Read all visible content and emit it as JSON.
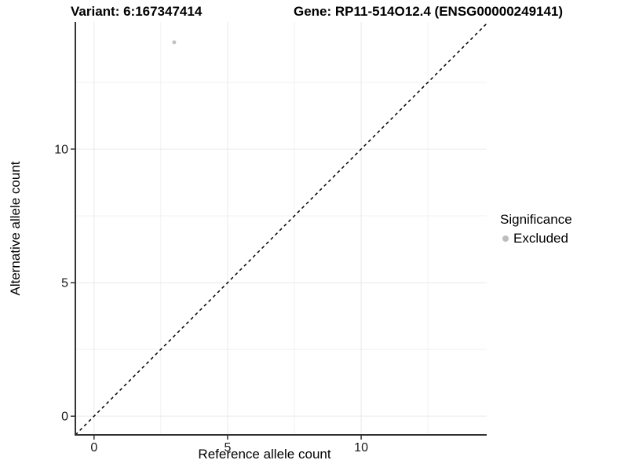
{
  "header": {
    "variant_title": "Variant: 6:167347414",
    "gene_title": "Gene: RP11-514O12.4 (ENSG00000249141)"
  },
  "chart_data": {
    "type": "scatter",
    "title_left": "Variant: 6:167347414",
    "title_right": "Gene: RP11-514O12.4 (ENSG00000249141)",
    "xlabel": "Reference allele count",
    "ylabel": "Alternative allele count",
    "xlim": [
      -0.7,
      14.7
    ],
    "ylim": [
      -0.7,
      14.76
    ],
    "x_major_ticks": [
      0,
      5,
      10
    ],
    "x_minor_ticks": [
      2.5,
      7.5,
      12.5
    ],
    "y_major_ticks": [
      0,
      5,
      10
    ],
    "y_minor_ticks": [
      2.5,
      7.5,
      12.5
    ],
    "grid": true,
    "legend_position": "right",
    "identity_line": {
      "dashed": true,
      "color": "#000000"
    },
    "series": [
      {
        "name": "Excluded",
        "color": "#c2c2c2",
        "marker_size": 5,
        "points": [
          {
            "x": 3,
            "y": 14
          }
        ]
      }
    ],
    "legend": {
      "title": "Significance",
      "entries": [
        {
          "label": "Excluded",
          "color": "#bdbdbd"
        }
      ]
    }
  },
  "colors": {
    "background": "#ffffff",
    "grid_major": "#e9e9e9",
    "grid_minor": "#f1f1f1",
    "axis_line": "#333333",
    "tick_text": "#1a1a1a"
  }
}
